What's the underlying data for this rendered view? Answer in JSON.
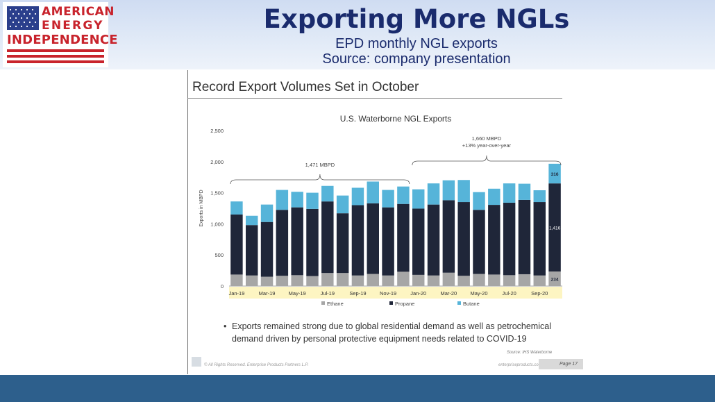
{
  "header": {
    "logo_lines": [
      "AMERICAN",
      "ENERGY",
      "INDEPENDENCE"
    ],
    "title": "Exporting More NGLs",
    "subtitle": "EPD monthly NGL exports",
    "source_line": "Source: company presentation"
  },
  "slide": {
    "heading": "Record Export Volumes Set in October",
    "bullet": "Exports remained strong due to global residential demand as well as petrochemical demand driven by personal protective equipment needs related to COVID-19",
    "source_note": "Source: IHS Waterborne",
    "rights": "© All Rights Reserved. Enterprise Products Partners L.P.",
    "website": "enterpriseproducts.com",
    "page": "Page 17"
  },
  "colors": {
    "ethane": "#a6a6a6",
    "propane": "#1f2639",
    "butane": "#56b4d9",
    "axis_band": "#fdf5c2",
    "footer": "#2d5f8c",
    "title": "#1a2b6d"
  },
  "chart_data": {
    "type": "bar",
    "stacked": true,
    "title": "U.S. Waterborne NGL Exports",
    "xlabel": "",
    "ylabel": "Exports in MBPD",
    "ylim": [
      0,
      2500
    ],
    "yticks": [
      "0",
      "500",
      "1,000",
      "1,500",
      "2,000",
      "2,500"
    ],
    "categories": [
      "Jan-19",
      "Feb-19",
      "Mar-19",
      "Apr-19",
      "May-19",
      "Jun-19",
      "Jul-19",
      "Aug-19",
      "Sep-19",
      "Oct-19",
      "Nov-19",
      "Dec-19",
      "Jan-20",
      "Feb-20",
      "Mar-20",
      "Apr-20",
      "May-20",
      "Jun-20",
      "Jul-20",
      "Aug-20",
      "Sep-20",
      "Oct-20"
    ],
    "x_tick_labels": [
      "Jan-19",
      "Mar-19",
      "May-19",
      "Jul-19",
      "Sep-19",
      "Nov-19",
      "Jan-20",
      "Mar-20",
      "May-20",
      "Jul-20",
      "Sep-20"
    ],
    "series": [
      {
        "name": "Ethane",
        "values": [
          185,
          170,
          150,
          165,
          175,
          160,
          210,
          210,
          170,
          195,
          170,
          230,
          180,
          170,
          215,
          165,
          195,
          185,
          175,
          190,
          170,
          234
        ]
      },
      {
        "name": "Propane",
        "values": [
          965,
          810,
          880,
          1060,
          1090,
          1080,
          1150,
          960,
          1130,
          1135,
          1095,
          1090,
          1065,
          1140,
          1165,
          1185,
          1030,
          1120,
          1165,
          1195,
          1180,
          1416
        ]
      },
      {
        "name": "Butane",
        "values": [
          210,
          150,
          280,
          320,
          250,
          260,
          250,
          285,
          280,
          350,
          280,
          280,
          310,
          340,
          320,
          355,
          285,
          260,
          310,
          260,
          190,
          316
        ]
      }
    ],
    "annotations": [
      {
        "text": "1,471 MBPD",
        "from": "Jan-19",
        "to": "Dec-19"
      },
      {
        "text": "1,660 MBPD",
        "text2": "+13% year-over-year",
        "from": "Jan-20",
        "to": "Oct-20"
      }
    ],
    "data_labels": [
      "316",
      "1,416",
      "234"
    ],
    "grid": false,
    "legend": "bottom"
  }
}
